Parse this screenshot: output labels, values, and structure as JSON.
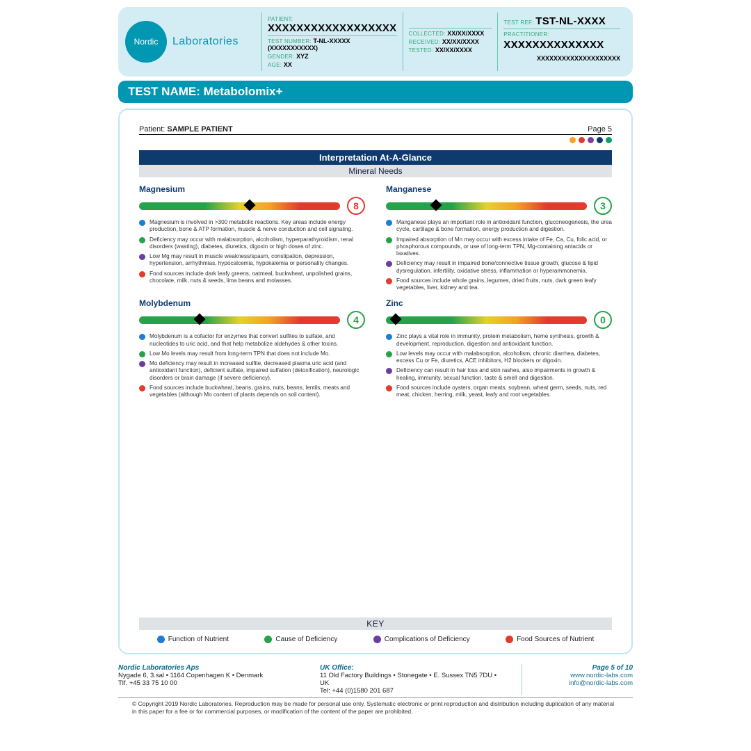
{
  "logo": {
    "short": "Nordic",
    "brand": "Laboratories"
  },
  "header": {
    "patient_lbl": "PATIENT:",
    "patient": "XXXXXXXXXXXXXXXXXX",
    "testnum_lbl": "TEST NUMBER:",
    "testnum": "T-NL-XXXXX (XXXXXXXXXXX)",
    "gender_lbl": "GENDER:",
    "gender": "XYZ",
    "age_lbl": "AGE:",
    "age": "XX",
    "collected_lbl": "COLLECTED:",
    "collected": "XX/XX/XXXX",
    "received_lbl": "RECEIVED:",
    "received": "XX/XX/XXXX",
    "tested_lbl": "TESTED:",
    "tested": "XX/XX/XXXX",
    "testref_lbl": "TEST REF:",
    "testref": "TST-NL-XXXX",
    "pract_lbl": "PRACTITIONER:",
    "pract": "XXXXXXXXXXXXXX",
    "addr": "XXXXXXXXXXXXXXXXXXXX"
  },
  "testname": "TEST NAME: Metabolomix+",
  "patient_line_lbl": "Patient:",
  "patient_line_val": "SAMPLE PATIENT",
  "page_label": "Page 5",
  "page_dots": [
    "#f4a124",
    "#e23b2e",
    "#7b3fa0",
    "#0e3a6e",
    "#0e9e6e"
  ],
  "title_bar": "Interpretation At-A-Glance",
  "sub_bar": "Mineral Needs",
  "colors": {
    "blue": "#1e7cd6",
    "green": "#26a34a",
    "purple": "#6a3fa0",
    "red": "#e23b2e"
  },
  "minerals": [
    {
      "name": "Magnesium",
      "score": "8",
      "score_color": "#e23b2e",
      "marker_pct": 55,
      "bullets": [
        {
          "c": "#1e7cd6",
          "t": "Magnesium is involved in >300 metabolic reactions. Key areas include energy production, bone & ATP formation, muscle & nerve conduction and cell signaling."
        },
        {
          "c": "#26a34a",
          "t": "Deficiency may occur with malabsorption, alcoholism, hyperparathyroidism, renal disorders (wasting), diabetes, diuretics, digoxin or high doses of zinc."
        },
        {
          "c": "#6a3fa0",
          "t": "Low Mg may result in muscle weakness/spasm, constipation, depression, hypertension, arrhythmias, hypocalcemia, hypokalemia or personality changes."
        },
        {
          "c": "#e23b2e",
          "t": "Food sources include dark leafy greens, oatmeal, buckwheat, unpolished grains, chocolate, milk, nuts & seeds, lima beans and molasses."
        }
      ]
    },
    {
      "name": "Manganese",
      "score": "3",
      "score_color": "#26a34a",
      "marker_pct": 25,
      "bullets": [
        {
          "c": "#1e7cd6",
          "t": "Manganese plays an important role in antioxidant function, gluconeogenesis, the urea cycle, cartilage & bone formation, energy production and digestion."
        },
        {
          "c": "#26a34a",
          "t": "Impaired absorption of Mn may occur with excess intake of Fe, Ca, Cu, folic acid, or phosphorous compounds, or use of long-term TPN, Mg-containing antacids or laxatives."
        },
        {
          "c": "#6a3fa0",
          "t": "Deficiency may result in impaired bone/connective tissue growth, glucose & lipid dysregulation, infertility, oxidative stress, inflammation or hyperammonemia."
        },
        {
          "c": "#e23b2e",
          "t": "Food sources include whole grains, legumes, dried fruits, nuts, dark green leafy vegetables, liver, kidney and tea."
        }
      ]
    },
    {
      "name": "Molybdenum",
      "score": "4",
      "score_color": "#26a34a",
      "marker_pct": 30,
      "bullets": [
        {
          "c": "#1e7cd6",
          "t": "Molybdenum is a cofactor for enzymes that convert sulfites to sulfate, and nucleotides to uric acid, and that help metabolize aldehydes & other toxins."
        },
        {
          "c": "#26a34a",
          "t": "Low Mo levels may result from long-term TPN that does not include Mo."
        },
        {
          "c": "#6a3fa0",
          "t": "Mo deficiency may result in increased sulfite, decreased plasma uric acid (and antioxidant function), deficient sulfate, impaired sulfation (detoxification), neurologic disorders or brain damage (if severe deficiency)."
        },
        {
          "c": "#e23b2e",
          "t": "Food sources include buckwheat, beans, grains, nuts, beans, lentils, meats and vegetables (although Mo content of plants depends on soil content)."
        }
      ]
    },
    {
      "name": "Zinc",
      "score": "0",
      "score_color": "#26a34a",
      "marker_pct": 5,
      "bullets": [
        {
          "c": "#1e7cd6",
          "t": "Zinc plays a vital role in immunity, protein metabolism, heme synthesis, growth & development, reproduction, digestion and antioxidant function."
        },
        {
          "c": "#26a34a",
          "t": "Low levels may occur with malabsorption, alcoholism, chronic diarrhea, diabetes, excess Cu or Fe, diuretics, ACE inhibitors, H2 blockers or digoxin."
        },
        {
          "c": "#6a3fa0",
          "t": "Deficiency can result in hair loss and skin rashes, also impairments in growth & healing, immunity, sexual function, taste & smell and digestion."
        },
        {
          "c": "#e23b2e",
          "t": "Food sources include oysters, organ meats, soybean, wheat germ, seeds, nuts, red meat, chicken, herring, milk, yeast, leafy and root vegetables."
        }
      ]
    }
  ],
  "key": {
    "title": "KEY",
    "items": [
      {
        "c": "#1e7cd6",
        "t": "Function of Nutrient"
      },
      {
        "c": "#26a34a",
        "t": "Cause of Deficiency"
      },
      {
        "c": "#6a3fa0",
        "t": "Complications of Deficiency"
      },
      {
        "c": "#e23b2e",
        "t": "Food Sources of Nutrient"
      }
    ]
  },
  "footer": {
    "dk_hdr": "Nordic Laboratories Aps",
    "dk_l1": "Nygade 6, 3.sal • 1164 Copenhagen K • Denmark",
    "dk_l2": "Tlf. +45 33 75 10 00",
    "uk_hdr": "UK Office:",
    "uk_l1": "11 Old Factory Buildings • Stonegate • E. Sussex TN5 7DU • UK",
    "uk_l2": "Tel: +44 (0)1580 201 687",
    "page": "Page 5 of 10",
    "url": "www.nordic-labs.com",
    "email": "info@nordic-labs.com"
  },
  "copyright": "© Copyright 2019 Nordic Laboratories. Reproduction may be made for personal use only. Systematic electronic or print reproduction and distribution including duplication of any material in this paper for a fee or for commercial purposes, or modification of the content of the paper are prohibited."
}
